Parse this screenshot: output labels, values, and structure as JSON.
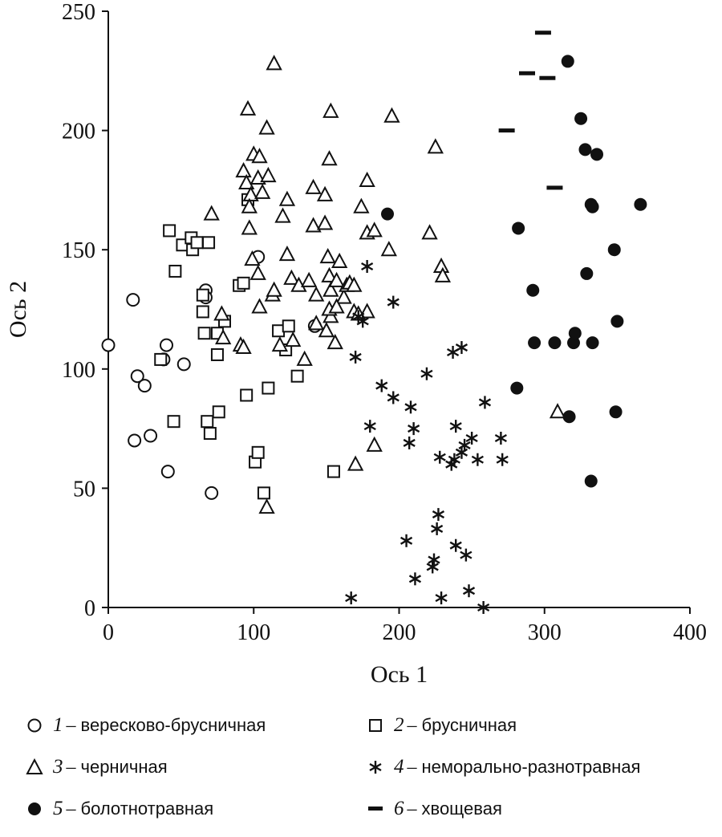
{
  "chart_data": {
    "type": "scatter",
    "xlabel": "Ось 1",
    "ylabel": "Ось 2",
    "xlim": [
      0,
      400
    ],
    "ylim": [
      0,
      250
    ],
    "xticks": [
      "0",
      "100",
      "200",
      "300",
      "400"
    ],
    "yticks": [
      "0",
      "50",
      "100",
      "150",
      "200",
      "250"
    ],
    "series": [
      {
        "number": "1",
        "name": "вересково-брусничная",
        "marker": "open-circle",
        "points": [
          [
            0,
            110
          ],
          [
            17,
            129
          ],
          [
            18,
            70
          ],
          [
            20,
            97
          ],
          [
            25,
            93
          ],
          [
            29,
            72
          ],
          [
            38,
            104
          ],
          [
            40,
            110
          ],
          [
            41,
            57
          ],
          [
            52,
            102
          ],
          [
            67,
            133
          ],
          [
            67,
            130
          ],
          [
            71,
            48
          ],
          [
            103,
            147
          ],
          [
            142,
            118
          ]
        ]
      },
      {
        "number": "2",
        "name": "брусничная",
        "marker": "open-square",
        "points": [
          [
            42,
            158
          ],
          [
            46,
            141
          ],
          [
            51,
            152
          ],
          [
            57,
            155
          ],
          [
            58,
            150
          ],
          [
            61,
            153
          ],
          [
            65,
            131
          ],
          [
            65,
            124
          ],
          [
            66,
            115
          ],
          [
            68,
            78
          ],
          [
            69,
            153
          ],
          [
            70,
            73
          ],
          [
            75,
            106
          ],
          [
            75,
            115
          ],
          [
            76,
            82
          ],
          [
            80,
            120
          ],
          [
            90,
            135
          ],
          [
            93,
            136
          ],
          [
            95,
            89
          ],
          [
            96,
            171
          ],
          [
            101,
            61
          ],
          [
            103,
            65
          ],
          [
            107,
            48
          ],
          [
            110,
            92
          ],
          [
            117,
            116
          ],
          [
            122,
            108
          ],
          [
            124,
            118
          ],
          [
            130,
            97
          ],
          [
            155,
            57
          ],
          [
            36,
            104
          ],
          [
            45,
            78
          ]
        ]
      },
      {
        "number": "3",
        "name": "черничная",
        "marker": "open-triangle",
        "points": [
          [
            114,
            228
          ],
          [
            96,
            209
          ],
          [
            109,
            201
          ],
          [
            153,
            208
          ],
          [
            195,
            206
          ],
          [
            225,
            193
          ],
          [
            100,
            190
          ],
          [
            104,
            189
          ],
          [
            152,
            188
          ],
          [
            93,
            183
          ],
          [
            95,
            178
          ],
          [
            98,
            173
          ],
          [
            103,
            180
          ],
          [
            106,
            174
          ],
          [
            110,
            181
          ],
          [
            97,
            168
          ],
          [
            97,
            159
          ],
          [
            141,
            176
          ],
          [
            178,
            179
          ],
          [
            123,
            171
          ],
          [
            120,
            164
          ],
          [
            149,
            173
          ],
          [
            141,
            160
          ],
          [
            149,
            161
          ],
          [
            174,
            168
          ],
          [
            71,
            165
          ],
          [
            103,
            140
          ],
          [
            99,
            146
          ],
          [
            123,
            148
          ],
          [
            126,
            138
          ],
          [
            131,
            135
          ],
          [
            138,
            137
          ],
          [
            143,
            131
          ],
          [
            151,
            147
          ],
          [
            152,
            139
          ],
          [
            153,
            133
          ],
          [
            157,
            137
          ],
          [
            159,
            145
          ],
          [
            162,
            130
          ],
          [
            164,
            135
          ],
          [
            178,
            157
          ],
          [
            183,
            158
          ],
          [
            193,
            150
          ],
          [
            143,
            119
          ],
          [
            150,
            116
          ],
          [
            153,
            122
          ],
          [
            156,
            111
          ],
          [
            169,
            124
          ],
          [
            178,
            124
          ],
          [
            221,
            157
          ],
          [
            229,
            143
          ],
          [
            230,
            139
          ],
          [
            104,
            126
          ],
          [
            78,
            123
          ],
          [
            79,
            113
          ],
          [
            91,
            110
          ],
          [
            93,
            109
          ],
          [
            118,
            110
          ],
          [
            127,
            112
          ],
          [
            135,
            104
          ],
          [
            172,
            123
          ],
          [
            166,
            136
          ],
          [
            183,
            68
          ],
          [
            170,
            60
          ],
          [
            109,
            42
          ],
          [
            309,
            82
          ],
          [
            113,
            131
          ],
          [
            114,
            133
          ],
          [
            152,
            125
          ],
          [
            157,
            126
          ],
          [
            169,
            135
          ]
        ]
      },
      {
        "number": "4",
        "name": "неморально-разнотравная",
        "marker": "asterisk",
        "points": [
          [
            178,
            143
          ],
          [
            196,
            128
          ],
          [
            172,
            122
          ],
          [
            175,
            120
          ],
          [
            170,
            105
          ],
          [
            188,
            93
          ],
          [
            196,
            88
          ],
          [
            208,
            84
          ],
          [
            219,
            98
          ],
          [
            237,
            107
          ],
          [
            243,
            109
          ],
          [
            259,
            86
          ],
          [
            180,
            76
          ],
          [
            207,
            69
          ],
          [
            210,
            75
          ],
          [
            228,
            63
          ],
          [
            238,
            62
          ],
          [
            239,
            76
          ],
          [
            243,
            65
          ],
          [
            245,
            68
          ],
          [
            250,
            71
          ],
          [
            254,
            62
          ],
          [
            270,
            71
          ],
          [
            271,
            62
          ],
          [
            205,
            28
          ],
          [
            211,
            12
          ],
          [
            223,
            17
          ],
          [
            226,
            33
          ],
          [
            227,
            39
          ],
          [
            239,
            26
          ],
          [
            246,
            22
          ],
          [
            248,
            7
          ],
          [
            229,
            4
          ],
          [
            167,
            4
          ],
          [
            258,
            0
          ],
          [
            236,
            60
          ],
          [
            224,
            20
          ]
        ]
      },
      {
        "number": "5",
        "name": "болотнотравная",
        "marker": "filled-circle",
        "points": [
          [
            316,
            229
          ],
          [
            325,
            205
          ],
          [
            328,
            192
          ],
          [
            336,
            190
          ],
          [
            332,
            169
          ],
          [
            333,
            168
          ],
          [
            366,
            169
          ],
          [
            192,
            165
          ],
          [
            282,
            159
          ],
          [
            348,
            150
          ],
          [
            329,
            140
          ],
          [
            292,
            133
          ],
          [
            350,
            120
          ],
          [
            293,
            111
          ],
          [
            307,
            111
          ],
          [
            320,
            111
          ],
          [
            321,
            115
          ],
          [
            333,
            111
          ],
          [
            281,
            92
          ],
          [
            317,
            80
          ],
          [
            349,
            82
          ],
          [
            332,
            53
          ]
        ]
      },
      {
        "number": "6",
        "name": "хвощевая",
        "marker": "dash",
        "points": [
          [
            299,
            241
          ],
          [
            288,
            224
          ],
          [
            302,
            222
          ],
          [
            274,
            200
          ],
          [
            307,
            176
          ]
        ]
      }
    ]
  },
  "legend": {
    "items": [
      {
        "number": "1",
        "label": "вересково-брусничная"
      },
      {
        "number": "2",
        "label": "брусничная"
      },
      {
        "number": "3",
        "label": "черничная"
      },
      {
        "number": "4",
        "label": "неморально-разнотравная"
      },
      {
        "number": "5",
        "label": "болотнотравная"
      },
      {
        "number": "6",
        "label": "хвощевая"
      }
    ],
    "dash": "–"
  }
}
